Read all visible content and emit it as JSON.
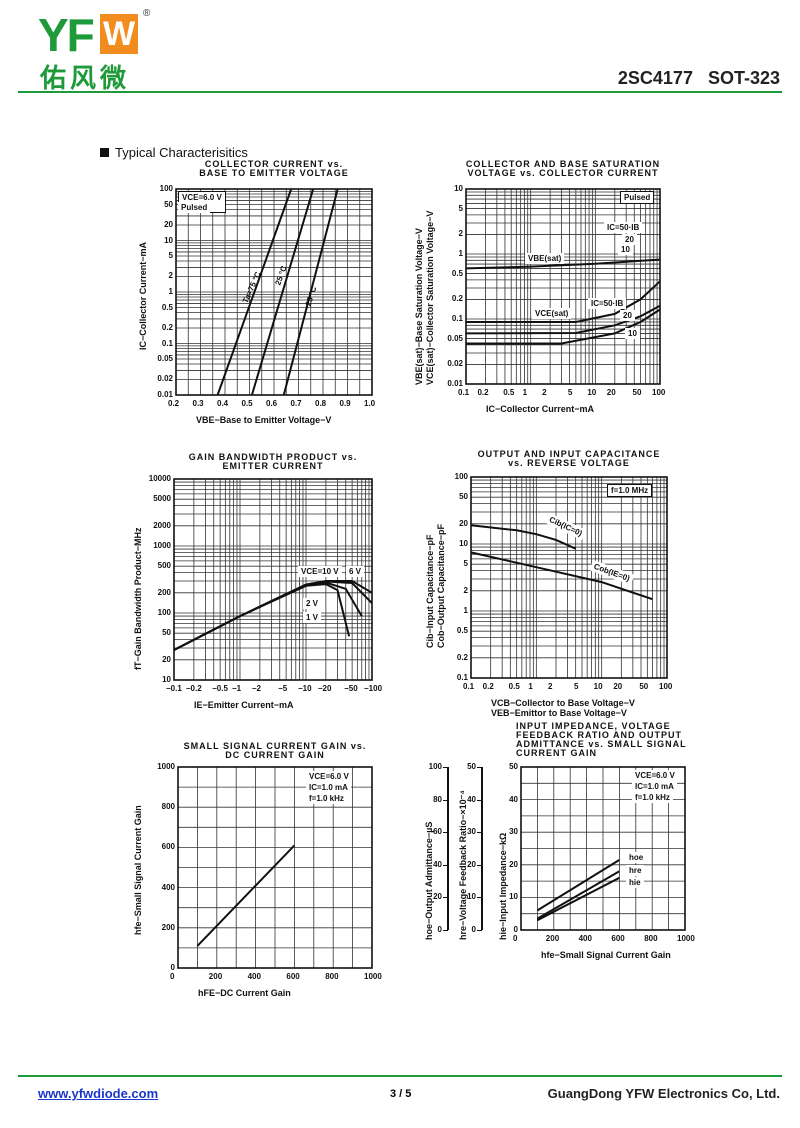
{
  "header": {
    "logo_text": "YFW",
    "logo_cn": "佑风微",
    "registered": "®",
    "title": "2SC4177   SOT-323"
  },
  "section_title": "Typical Characterisitics",
  "footer": {
    "link": "www.yfwdiode.com",
    "page": "3 / 5",
    "company": "GuangDong YFW Electronics Co, Ltd."
  },
  "colors": {
    "brand_green": "#1f9a3a",
    "brand_orange": "#f28c1e",
    "link": "#1a37c8"
  },
  "chart_data": [
    {
      "type": "line",
      "title": [
        "COLLECTOR CURRENT vs.",
        "BASE TO EMITTER VOLTAGE"
      ],
      "xlabel": "VBE−Base to Emitter Voltage−V",
      "ylabel": "IC−Collector Current−mA",
      "xscale": "linear",
      "yscale": "log",
      "xlim": [
        0.2,
        1.0
      ],
      "ylim": [
        0.01,
        100
      ],
      "xticks": [
        "0.2",
        "0.3",
        "0.4",
        "0.5",
        "0.6",
        "0.7",
        "0.8",
        "0.9",
        "1.0"
      ],
      "xtickvals": [
        0.2,
        0.3,
        0.4,
        0.5,
        0.6,
        0.7,
        0.8,
        0.9,
        1.0
      ],
      "yticks": [
        "0.01",
        "0.02",
        "0.05",
        "0.1",
        "0.2",
        "0.5",
        "1",
        "2",
        "5",
        "10",
        "20",
        "50",
        "100"
      ],
      "ytickvals": [
        0.01,
        0.02,
        0.05,
        0.1,
        0.2,
        0.5,
        1,
        2,
        5,
        10,
        20,
        50,
        100
      ],
      "notes": [
        "VCE=6.0 V",
        "Pulsed"
      ],
      "series": [
        {
          "name": "Ta=75 °C",
          "points": [
            [
              0.37,
              0.01
            ],
            [
              0.67,
              100
            ]
          ]
        },
        {
          "name": "25 °C",
          "points": [
            [
              0.51,
              0.01
            ],
            [
              0.76,
              100
            ]
          ]
        },
        {
          "name": "−25 °C",
          "points": [
            [
              0.64,
              0.01
            ],
            [
              0.86,
              100
            ]
          ]
        }
      ]
    },
    {
      "type": "line",
      "title": [
        "COLLECTOR AND BASE SATURATION",
        "VOLTAGE vs. COLLECTOR CURRENT"
      ],
      "xlabel": "IC−Collector Current−mA",
      "ylabel": [
        "VBE(sat)−Base Saturation Voltage−V",
        "VCE(sat)−Collector Saturation Voltage−V"
      ],
      "xscale": "log",
      "yscale": "log",
      "xlim": [
        0.1,
        100
      ],
      "ylim": [
        0.01,
        10
      ],
      "xticks": [
        "0.1",
        "0.2",
        "0.5",
        "1",
        "2",
        "5",
        "10",
        "20",
        "50",
        "100"
      ],
      "xtickvals": [
        0.1,
        0.2,
        0.5,
        1,
        2,
        5,
        10,
        20,
        50,
        100
      ],
      "yticks": [
        "0.01",
        "0.02",
        "0.05",
        "0.1",
        "0.2",
        "0.5",
        "1",
        "2",
        "5",
        "10"
      ],
      "ytickvals": [
        0.01,
        0.02,
        0.05,
        0.1,
        0.2,
        0.5,
        1,
        2,
        5,
        10
      ],
      "notes": [
        "Pulsed",
        "IC=50·IB",
        "20",
        "10",
        "VBE(sat)",
        "VCE(sat)",
        "IC=50·IB",
        "20",
        "10"
      ],
      "series": [
        {
          "name": "VBE(sat)",
          "points": [
            [
              0.1,
              0.6
            ],
            [
              1,
              0.64
            ],
            [
              10,
              0.71
            ],
            [
              100,
              0.82
            ]
          ]
        },
        {
          "name": "VCE(sat) IC=50·IB",
          "points": [
            [
              0.1,
              0.09
            ],
            [
              5,
              0.09
            ],
            [
              20,
              0.12
            ],
            [
              50,
              0.2
            ],
            [
              100,
              0.38
            ]
          ]
        },
        {
          "name": "VCE(sat) IC=20·IB",
          "points": [
            [
              0.1,
              0.06
            ],
            [
              5,
              0.061
            ],
            [
              20,
              0.08
            ],
            [
              50,
              0.11
            ],
            [
              100,
              0.16
            ]
          ]
        },
        {
          "name": "VCE(sat) IC=10·IB",
          "points": [
            [
              0.1,
              0.042
            ],
            [
              3,
              0.042
            ],
            [
              20,
              0.06
            ],
            [
              50,
              0.09
            ],
            [
              100,
              0.14
            ]
          ]
        }
      ]
    },
    {
      "type": "line",
      "title": [
        "GAIN BANDWIDTH PRODUCT vs.",
        "EMITTER CURRENT"
      ],
      "xlabel": "IE−Emitter Current−mA",
      "ylabel": "fT−Gain Bandwidth Product−MHz",
      "xscale": "log",
      "yscale": "log",
      "xlim": [
        0.1,
        100
      ],
      "ylim": [
        10,
        10000
      ],
      "xticks": [
        "−0.1",
        "−0.2",
        "−0.5",
        "−1",
        "−2",
        "−5",
        "−10",
        "−20",
        "−50",
        "−100"
      ],
      "xtickvals": [
        0.1,
        0.2,
        0.5,
        1,
        2,
        5,
        10,
        20,
        50,
        100
      ],
      "yticks": [
        "10",
        "20",
        "50",
        "100",
        "200",
        "500",
        "1000",
        "2000",
        "5000",
        "10000"
      ],
      "ytickvals": [
        10,
        20,
        50,
        100,
        200,
        500,
        1000,
        2000,
        5000,
        10000
      ],
      "notes": [
        "VCE=10 V",
        "6 V",
        "2 V",
        "1 V"
      ],
      "series": [
        {
          "name": "VCE=10 V",
          "points": [
            [
              0.1,
              28
            ],
            [
              1,
              90
            ],
            [
              10,
              265
            ],
            [
              20,
              300
            ],
            [
              50,
              300
            ],
            [
              100,
              200
            ]
          ]
        },
        {
          "name": "6 V",
          "points": [
            [
              0.1,
              28
            ],
            [
              1,
              90
            ],
            [
              10,
              265
            ],
            [
              20,
              295
            ],
            [
              50,
              280
            ],
            [
              100,
              140
            ]
          ]
        },
        {
          "name": "2 V",
          "points": [
            [
              0.1,
              28
            ],
            [
              1,
              90
            ],
            [
              10,
              260
            ],
            [
              20,
              285
            ],
            [
              40,
              230
            ],
            [
              70,
              90
            ]
          ]
        },
        {
          "name": "1 V",
          "points": [
            [
              0.1,
              28
            ],
            [
              1,
              90
            ],
            [
              10,
              255
            ],
            [
              20,
              270
            ],
            [
              30,
              220
            ],
            [
              45,
              45
            ]
          ]
        }
      ]
    },
    {
      "type": "line",
      "title": [
        "OUTPUT AND INPUT CAPACITANCE",
        "vs. REVERSE VOLTAGE"
      ],
      "xlabel": [
        "VCB−Collector to Base Voltage−V",
        "VEB−Emittor to Base Voltage−V"
      ],
      "ylabel": [
        "Cib−Input Capacitance−pF",
        "Cob−Output Capacitance−pF"
      ],
      "xscale": "log",
      "yscale": "log",
      "xlim": [
        0.1,
        100
      ],
      "ylim": [
        0.1,
        100
      ],
      "xticks": [
        "0.1",
        "0.2",
        "0.5",
        "1",
        "2",
        "5",
        "10",
        "20",
        "50",
        "100"
      ],
      "xtickvals": [
        0.1,
        0.2,
        0.5,
        1,
        2,
        5,
        10,
        20,
        50,
        100
      ],
      "yticks": [
        "0.1",
        "0.2",
        "0.5",
        "1",
        "2",
        "5",
        "10",
        "20",
        "50",
        "100"
      ],
      "ytickvals": [
        0.1,
        0.2,
        0.5,
        1,
        2,
        5,
        10,
        20,
        50,
        100
      ],
      "notes": [
        "f=1.0 MHz",
        "Cib(IC=0)",
        "Cob(IE=0)"
      ],
      "series": [
        {
          "name": "Cib(IC=0)",
          "points": [
            [
              0.1,
              19
            ],
            [
              0.5,
              16
            ],
            [
              1,
              14
            ],
            [
              2,
              11.5
            ],
            [
              4,
              8.5
            ]
          ]
        },
        {
          "name": "Cob(IE=0)",
          "points": [
            [
              0.1,
              7.5
            ],
            [
              1,
              4.5
            ],
            [
              10,
              2.7
            ],
            [
              60,
              1.5
            ]
          ]
        }
      ]
    },
    {
      "type": "line",
      "title": [
        "SMALL SIGNAL CURRENT GAIN vs.",
        "DC CURRENT GAIN"
      ],
      "xlabel": "hFE−DC Current Gain",
      "ylabel": "hfe−Small Signal Current Gain",
      "xscale": "linear",
      "yscale": "linear",
      "xlim": [
        0,
        1000
      ],
      "ylim": [
        0,
        1000
      ],
      "xticks": [
        "0",
        "200",
        "400",
        "600",
        "800",
        "1000"
      ],
      "xtickvals": [
        0,
        200,
        400,
        600,
        800,
        1000
      ],
      "yticks": [
        "0",
        "200",
        "400",
        "600",
        "800",
        "1000"
      ],
      "ytickvals": [
        0,
        200,
        400,
        600,
        800,
        1000
      ],
      "notes": [
        "VCE=6.0 V",
        "IC=1.0 mA",
        "f=1.0 kHz"
      ],
      "series": [
        {
          "name": "hfe",
          "points": [
            [
              100,
              110
            ],
            [
              600,
              610
            ]
          ]
        }
      ]
    },
    {
      "type": "line",
      "title": [
        "INPUT IMPEDANCE, VOLTAGE",
        "FEEDBACK RATIO AND OUTPUT",
        "ADMITTANCE vs. SMALL SIGNAL",
        "CURRENT GAIN"
      ],
      "xlabel": "hfe−Small Signal Current Gain",
      "ylabels": [
        "hoe−Output Admittance−µS",
        "hre−Voltage Feedback Ratio−×10⁻⁴",
        "hie−Input Impedance−kΩ"
      ],
      "extra_axes": [
        {
          "ticks": [
            "0",
            "20",
            "40",
            "60",
            "80",
            "100"
          ]
        },
        {
          "ticks": [
            "0",
            "10",
            "20",
            "30",
            "40",
            "50"
          ]
        }
      ],
      "xscale": "linear",
      "yscale": "linear",
      "xlim": [
        0,
        1000
      ],
      "ylim": [
        0,
        50
      ],
      "xticks": [
        "0",
        "200",
        "400",
        "600",
        "800",
        "1000"
      ],
      "xtickvals": [
        0,
        200,
        400,
        600,
        800,
        1000
      ],
      "yticks": [
        "0",
        "10",
        "20",
        "30",
        "40",
        "50"
      ],
      "ytickvals": [
        0,
        10,
        20,
        30,
        40,
        50
      ],
      "notes": [
        "VCE=6.0 V",
        "IC=1.0 mA",
        "f=1.0 kHz",
        "hoe",
        "hre",
        "hie"
      ],
      "series": [
        {
          "name": "hoe",
          "points": [
            [
              100,
              6
            ],
            [
              600,
              21.5
            ]
          ]
        },
        {
          "name": "hre",
          "points": [
            [
              100,
              3.5
            ],
            [
              600,
              18
            ]
          ]
        },
        {
          "name": "hie",
          "points": [
            [
              100,
              3
            ],
            [
              600,
              16
            ]
          ]
        }
      ]
    }
  ]
}
